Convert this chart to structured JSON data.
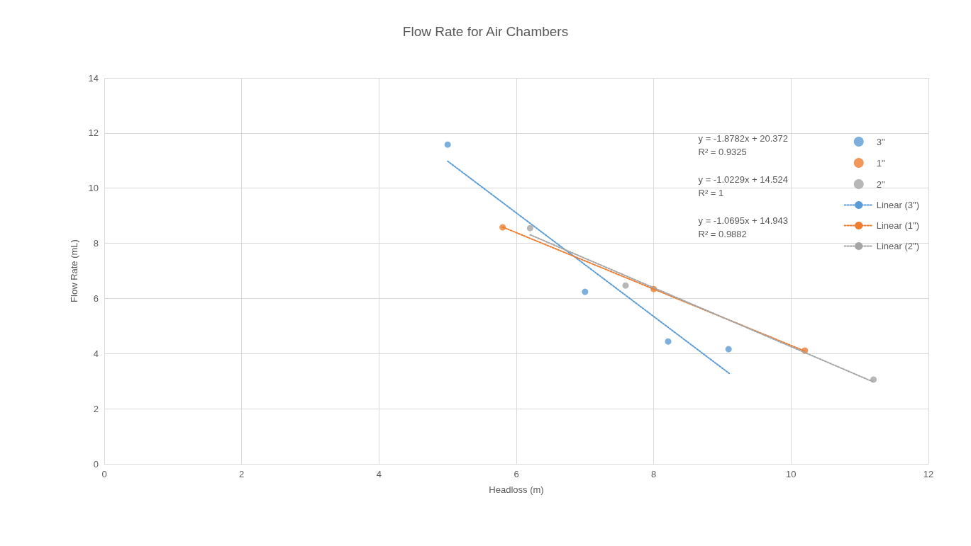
{
  "chart_data": {
    "type": "scatter",
    "title": "Flow Rate for Air Chambers",
    "xlabel": "Headloss (m)",
    "ylabel": "Flow Rate (mL)",
    "xlim": [
      0,
      12
    ],
    "xticks": [
      0,
      2,
      4,
      6,
      8,
      10,
      12
    ],
    "ylim": [
      0,
      14
    ],
    "yticks": [
      0,
      2,
      4,
      6,
      8,
      10,
      12,
      14
    ],
    "grid": true,
    "legend": "right",
    "marker": "circle",
    "series": [
      {
        "name": "3\"",
        "color": "#5b9bd5",
        "x": [
          5.0,
          7.0,
          8.21,
          9.09
        ],
        "values": [
          11.58,
          6.24,
          4.44,
          4.16
        ]
      },
      {
        "name": "1\"",
        "color": "#ed7d31",
        "x": [
          5.8,
          8.0,
          10.2
        ],
        "values": [
          8.58,
          6.34,
          4.11
        ]
      },
      {
        "name": "2\"",
        "color": "#a5a5a5",
        "x": [
          6.2,
          7.59,
          11.2
        ],
        "values": [
          8.55,
          6.47,
          3.06
        ]
      },
      {
        "name": "Linear (3\")",
        "type": "line",
        "color": "#5b9bd5",
        "line_style": "dotted",
        "marker": "none",
        "x": [
          5.0,
          9.1
        ],
        "values": [
          10.98,
          3.28
        ]
      },
      {
        "name": "Linear (1\")",
        "type": "line",
        "color": "#ed7d31",
        "line_style": "dotted",
        "marker": "none",
        "x": [
          5.8,
          10.2
        ],
        "values": [
          8.59,
          4.09
        ]
      },
      {
        "name": "Linear (2\")",
        "type": "line",
        "color": "#a5a5a5",
        "line_style": "dotted",
        "marker": "none",
        "x": [
          6.2,
          11.2
        ],
        "values": [
          8.31,
          2.97
        ]
      }
    ],
    "annotations": [
      "y = -1.8782x + 20.372\nR² = 0.9325",
      "y = -1.0229x + 14.524\nR² = 1",
      "y = -1.0695x + 14.943\nR² = 0.9882"
    ]
  }
}
